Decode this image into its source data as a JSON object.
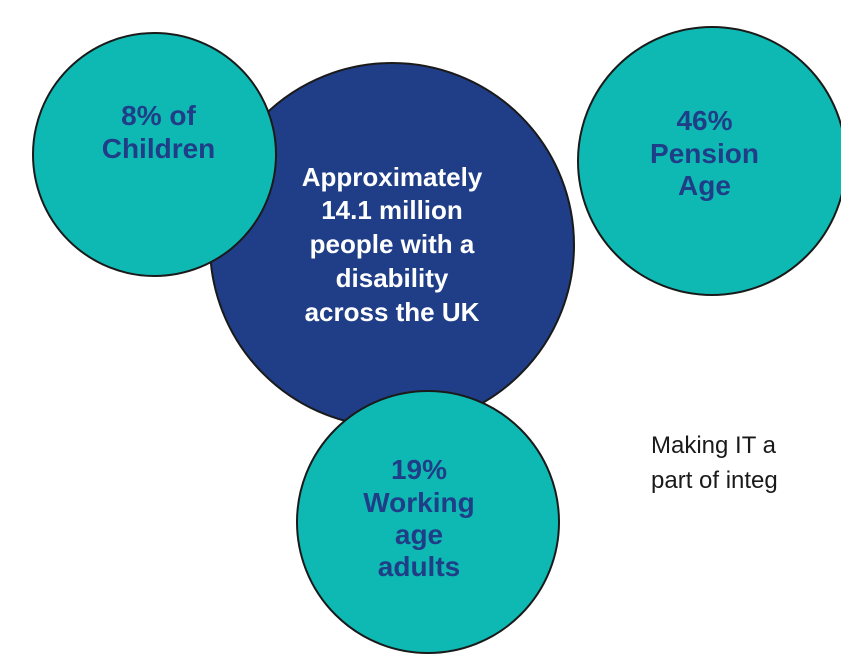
{
  "diagram": {
    "main_circle": {
      "text": "Approximately\n14.1 million\npeople with a\ndisability\nacross the UK"
    },
    "children_circle": {
      "text": "8% of\nChildren"
    },
    "pension_circle": {
      "text": "46%\nPension\nAge"
    },
    "working_circle": {
      "text": "19%\nWorking\nage\nadults"
    },
    "side_text": "Making IT a\npart of integ"
  },
  "colors": {
    "main_circle": "#1f3e87",
    "teal_circles": "#0fb9b3",
    "teal_text": "#1f3e87",
    "main_text": "#ffffff",
    "outline": "#1a1a1a"
  }
}
